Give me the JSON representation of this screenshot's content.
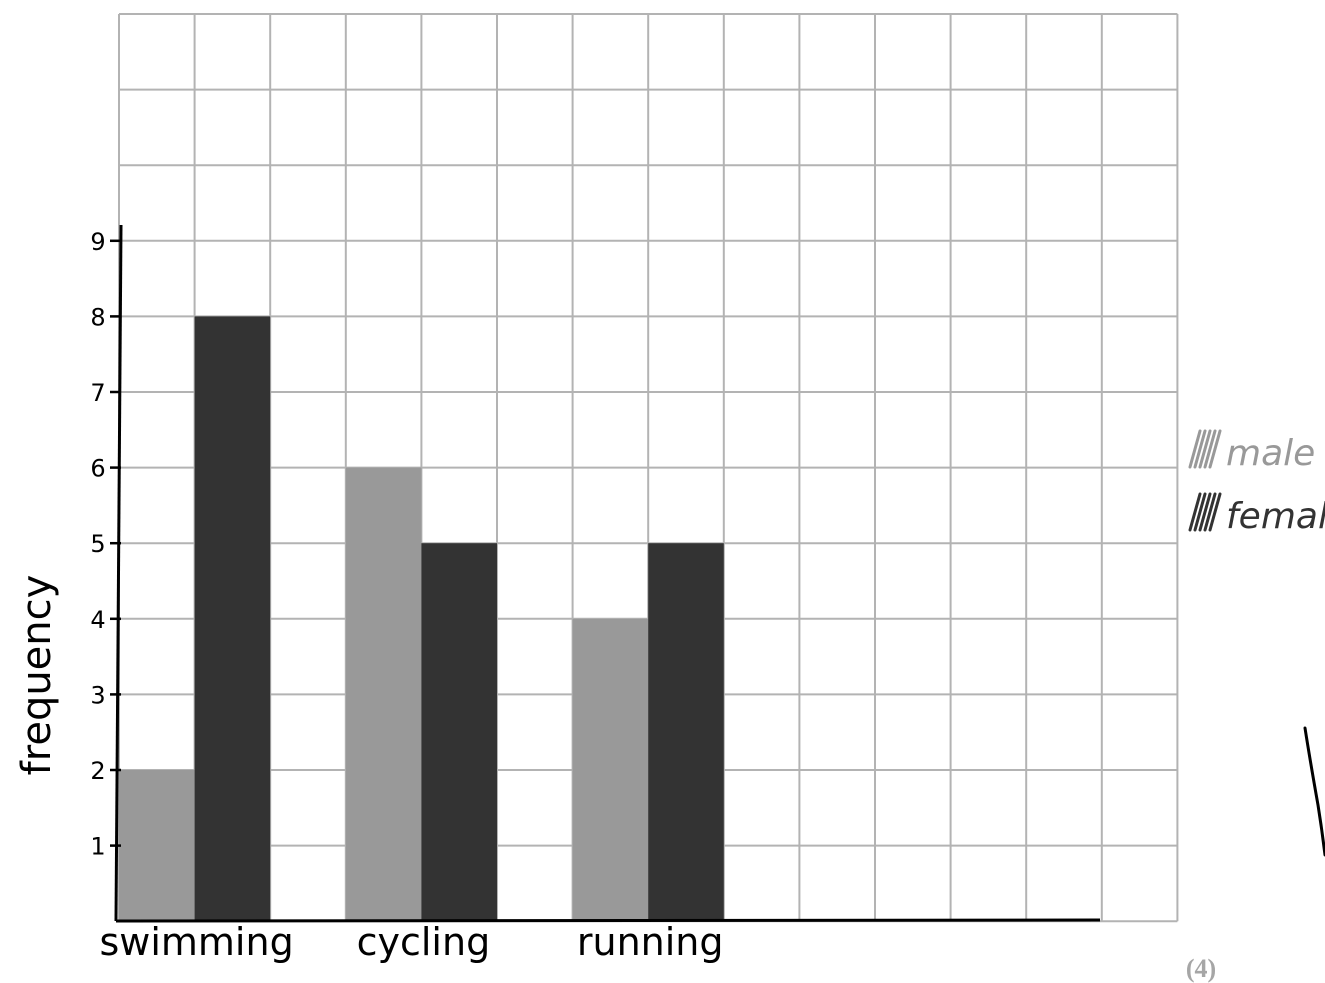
{
  "chart_data": {
    "type": "bar",
    "categories": [
      "swimming",
      "cycling",
      "running"
    ],
    "series": [
      {
        "name": "male",
        "values": [
          2,
          6,
          4
        ],
        "color": "#999999"
      },
      {
        "name": "female",
        "values": [
          8,
          5,
          5
        ],
        "color": "#333333"
      }
    ],
    "ylabel": "frequency",
    "xlabel": "",
    "yticks": [
      1,
      2,
      3,
      4,
      5,
      6,
      7,
      8,
      9
    ],
    "ylim": [
      0,
      12
    ],
    "grid": true,
    "legend_placement": "right"
  },
  "marks": "(4)",
  "colors": {
    "grid": "#b3b3b3",
    "axis": "#000000",
    "marks_text": "#a6a6a6"
  }
}
